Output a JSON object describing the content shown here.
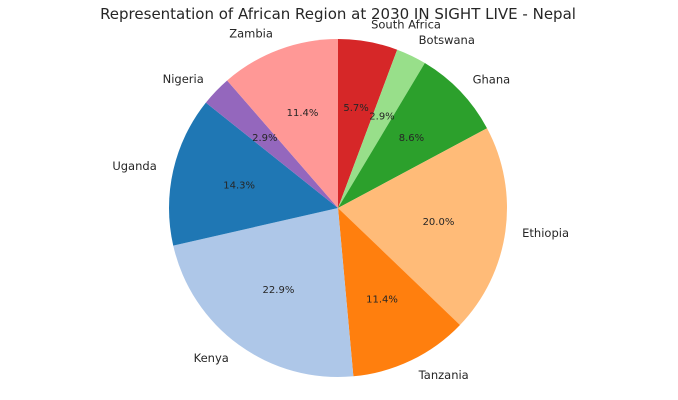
{
  "chart_data": {
    "type": "pie",
    "title": "Representation of African Region at 2030 IN SIGHT LIVE - Nepal",
    "start_angle_deg": 90,
    "direction": "clockwise",
    "slices": [
      {
        "label": "South Africa",
        "value": 5.7,
        "pct_label": "5.7%",
        "color": "#d62728"
      },
      {
        "label": "Botswana",
        "value": 2.9,
        "pct_label": "2.9%",
        "color": "#98df8a"
      },
      {
        "label": "Ghana",
        "value": 8.6,
        "pct_label": "8.6%",
        "color": "#2ca02c"
      },
      {
        "label": "Ethiopia",
        "value": 20.0,
        "pct_label": "20.0%",
        "color": "#ffbb78"
      },
      {
        "label": "Tanzania",
        "value": 11.4,
        "pct_label": "11.4%",
        "color": "#ff7f0e"
      },
      {
        "label": "Kenya",
        "value": 22.9,
        "pct_label": "22.9%",
        "color": "#aec7e8"
      },
      {
        "label": "Uganda",
        "value": 14.3,
        "pct_label": "14.3%",
        "color": "#1f77b4"
      },
      {
        "label": "Nigeria",
        "value": 2.9,
        "pct_label": "2.9%",
        "color": "#9467bd"
      },
      {
        "label": "Zambia",
        "value": 11.4,
        "pct_label": "11.4%",
        "color": "#ff9896"
      }
    ]
  }
}
